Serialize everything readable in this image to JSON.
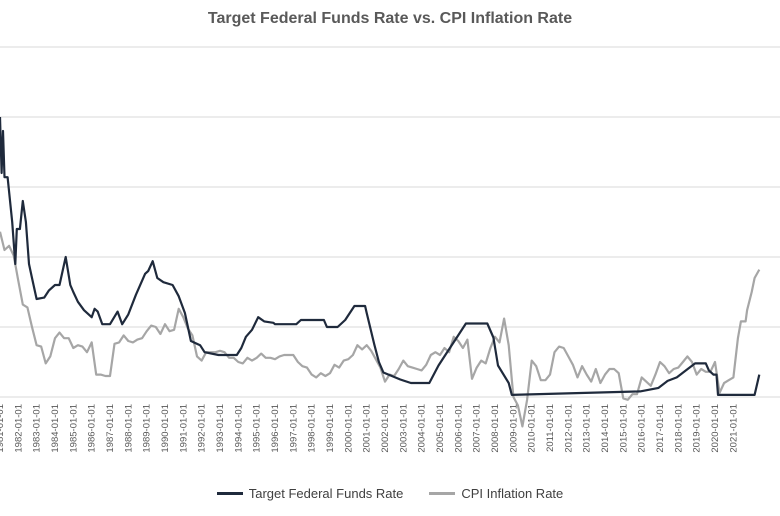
{
  "chart_data": {
    "type": "line",
    "title": "Target Federal Funds Rate vs. CPI Inflation Rate",
    "xlabel": "",
    "ylabel": "",
    "x_range": [
      "1981-01-01",
      "2022-06-01"
    ],
    "ylim": [
      0,
      20
    ],
    "grid": "horizontal",
    "legend_position": "bottom",
    "x_tick_labels": [
      "1981-01-01",
      "1982-01-01",
      "1983-01-01",
      "1984-01-01",
      "1985-01-01",
      "1986-01-01",
      "1987-01-01",
      "1988-01-01",
      "1989-01-01",
      "1990-01-01",
      "1991-01-01",
      "1992-01-01",
      "1993-01-01",
      "1994-01-01",
      "1995-01-01",
      "1996-01-01",
      "1997-01-01",
      "1998-01-01",
      "1999-01-01",
      "2000-01-01",
      "2001-01-01",
      "2002-01-01",
      "2003-01-01",
      "2004-01-01",
      "2005-01-01",
      "2006-01-01",
      "2007-01-01",
      "2008-01-01",
      "2009-01-01",
      "2010-01-01",
      "2011-01-01",
      "2012-01-01",
      "2013-01-01",
      "2014-01-01",
      "2015-01-01",
      "2016-01-01",
      "2017-01-01",
      "2018-01-01",
      "2019-01-01",
      "2020-01-01",
      "2021-01-01"
    ],
    "series": [
      {
        "name": "Target Federal Funds Rate",
        "color": "#1f2a3c",
        "points": [
          [
            "1981-01-01",
            20
          ],
          [
            "1981-02-01",
            16
          ],
          [
            "1981-03-01",
            19
          ],
          [
            "1981-04-01",
            15.7
          ],
          [
            "1981-06-01",
            15.7
          ],
          [
            "1981-09-01",
            12.5
          ],
          [
            "1981-11-01",
            9.5
          ],
          [
            "1981-12-01",
            12
          ],
          [
            "1982-02-01",
            12
          ],
          [
            "1982-04-01",
            14
          ],
          [
            "1982-06-01",
            12.5
          ],
          [
            "1982-08-01",
            9.5
          ],
          [
            "1982-10-01",
            8.5
          ],
          [
            "1983-01-01",
            7
          ],
          [
            "1983-06-01",
            7.1
          ],
          [
            "1983-09-01",
            7.6
          ],
          [
            "1984-01-01",
            8
          ],
          [
            "1984-04-01",
            8
          ],
          [
            "1984-06-01",
            9
          ],
          [
            "1984-08-01",
            10
          ],
          [
            "1984-11-01",
            8
          ],
          [
            "1985-01-01",
            7.5
          ],
          [
            "1985-04-01",
            6.8
          ],
          [
            "1985-08-01",
            6.2
          ],
          [
            "1986-01-01",
            5.7
          ],
          [
            "1986-03-01",
            6.3
          ],
          [
            "1986-05-01",
            6.1
          ],
          [
            "1986-08-01",
            5.2
          ],
          [
            "1987-01-01",
            5.2
          ],
          [
            "1987-06-01",
            6.1
          ],
          [
            "1987-09-01",
            5.2
          ],
          [
            "1988-01-01",
            5.9
          ],
          [
            "1988-06-01",
            7.3
          ],
          [
            "1988-12-01",
            8.8
          ],
          [
            "1989-02-01",
            9
          ],
          [
            "1989-05-01",
            9.7
          ],
          [
            "1989-08-01",
            8.5
          ],
          [
            "1989-12-01",
            8.2
          ],
          [
            "1990-06-01",
            8
          ],
          [
            "1990-10-01",
            7.2
          ],
          [
            "1991-02-01",
            6
          ],
          [
            "1991-06-01",
            4
          ],
          [
            "1991-12-01",
            3.7
          ],
          [
            "1992-03-01",
            3.2
          ],
          [
            "1992-12-01",
            3
          ],
          [
            "1993-12-01",
            3
          ],
          [
            "1994-03-01",
            3.5
          ],
          [
            "1994-06-01",
            4.3
          ],
          [
            "1994-10-01",
            4.8
          ],
          [
            "1995-02-01",
            5.7
          ],
          [
            "1995-06-01",
            5.4
          ],
          [
            "1995-12-01",
            5.3
          ],
          [
            "1996-01-01",
            5.2
          ],
          [
            "1997-03-01",
            5.2
          ],
          [
            "1997-06-01",
            5.5
          ],
          [
            "1998-09-01",
            5.5
          ],
          [
            "1998-11-01",
            5
          ],
          [
            "1999-06-01",
            5
          ],
          [
            "1999-11-01",
            5.5
          ],
          [
            "2000-05-01",
            6.5
          ],
          [
            "2000-12-01",
            6.5
          ],
          [
            "2001-01-01",
            6
          ],
          [
            "2001-06-01",
            3.75
          ],
          [
            "2001-09-01",
            2.5
          ],
          [
            "2001-12-01",
            1.75
          ],
          [
            "2002-11-01",
            1.25
          ],
          [
            "2003-06-01",
            1
          ],
          [
            "2004-06-01",
            1
          ],
          [
            "2004-12-01",
            2.25
          ],
          [
            "2005-06-01",
            3.25
          ],
          [
            "2005-12-01",
            4.25
          ],
          [
            "2006-06-01",
            5.25
          ],
          [
            "2007-08-01",
            5.25
          ],
          [
            "2007-12-01",
            4.25
          ],
          [
            "2008-03-01",
            2.25
          ],
          [
            "2008-10-01",
            1
          ],
          [
            "2008-12-01",
            0.15
          ],
          [
            "2015-12-01",
            0.4
          ],
          [
            "2016-12-01",
            0.65
          ],
          [
            "2017-06-01",
            1.15
          ],
          [
            "2017-12-01",
            1.4
          ],
          [
            "2018-06-01",
            1.9
          ],
          [
            "2018-12-01",
            2.4
          ],
          [
            "2019-07-01",
            2.4
          ],
          [
            "2019-09-01",
            1.9
          ],
          [
            "2019-12-01",
            1.6
          ],
          [
            "2020-02-01",
            1.6
          ],
          [
            "2020-03-01",
            0.15
          ],
          [
            "2022-03-01",
            0.15
          ],
          [
            "2022-06-01",
            1.6
          ]
        ]
      },
      {
        "name": "CPI Inflation Rate",
        "color": "#a6a6a6",
        "points": [
          [
            "1981-01-01",
            11.8
          ],
          [
            "1981-04-01",
            10.5
          ],
          [
            "1981-07-01",
            10.8
          ],
          [
            "1981-10-01",
            10.1
          ],
          [
            "1982-01-01",
            8.3
          ],
          [
            "1982-04-01",
            6.6
          ],
          [
            "1982-07-01",
            6.4
          ],
          [
            "1982-10-01",
            5
          ],
          [
            "1983-01-01",
            3.7
          ],
          [
            "1983-04-01",
            3.6
          ],
          [
            "1983-07-01",
            2.4
          ],
          [
            "1983-10-01",
            2.9
          ],
          [
            "1984-01-01",
            4.2
          ],
          [
            "1984-04-01",
            4.6
          ],
          [
            "1984-07-01",
            4.2
          ],
          [
            "1984-10-01",
            4.2
          ],
          [
            "1985-01-01",
            3.5
          ],
          [
            "1985-04-01",
            3.7
          ],
          [
            "1985-07-01",
            3.6
          ],
          [
            "1985-10-01",
            3.2
          ],
          [
            "1986-01-01",
            3.9
          ],
          [
            "1986-04-01",
            1.6
          ],
          [
            "1986-07-01",
            1.6
          ],
          [
            "1986-10-01",
            1.5
          ],
          [
            "1987-01-01",
            1.5
          ],
          [
            "1987-04-01",
            3.8
          ],
          [
            "1987-07-01",
            3.9
          ],
          [
            "1987-10-01",
            4.4
          ],
          [
            "1988-01-01",
            4
          ],
          [
            "1988-04-01",
            3.9
          ],
          [
            "1988-07-01",
            4.1
          ],
          [
            "1988-10-01",
            4.2
          ],
          [
            "1989-01-01",
            4.7
          ],
          [
            "1989-04-01",
            5.1
          ],
          [
            "1989-07-01",
            5
          ],
          [
            "1989-10-01",
            4.5
          ],
          [
            "1990-01-01",
            5.2
          ],
          [
            "1990-04-01",
            4.7
          ],
          [
            "1990-07-01",
            4.8
          ],
          [
            "1990-10-01",
            6.3
          ],
          [
            "1991-01-01",
            5.7
          ],
          [
            "1991-04-01",
            4.9
          ],
          [
            "1991-07-01",
            4.4
          ],
          [
            "1991-10-01",
            2.9
          ],
          [
            "1992-01-01",
            2.6
          ],
          [
            "1992-04-01",
            3.2
          ],
          [
            "1992-07-01",
            3.2
          ],
          [
            "1992-10-01",
            3.2
          ],
          [
            "1993-01-01",
            3.3
          ],
          [
            "1993-04-01",
            3.2
          ],
          [
            "1993-07-01",
            2.8
          ],
          [
            "1993-10-01",
            2.8
          ],
          [
            "1994-01-01",
            2.5
          ],
          [
            "1994-04-01",
            2.4
          ],
          [
            "1994-07-01",
            2.8
          ],
          [
            "1994-10-01",
            2.6
          ],
          [
            "1995-01-01",
            2.8
          ],
          [
            "1995-04-01",
            3.1
          ],
          [
            "1995-07-01",
            2.8
          ],
          [
            "1995-10-01",
            2.8
          ],
          [
            "1996-01-01",
            2.7
          ],
          [
            "1996-04-01",
            2.9
          ],
          [
            "1996-07-01",
            3
          ],
          [
            "1996-10-01",
            3
          ],
          [
            "1997-01-01",
            3
          ],
          [
            "1997-04-01",
            2.5
          ],
          [
            "1997-07-01",
            2.2
          ],
          [
            "1997-10-01",
            2.1
          ],
          [
            "1998-01-01",
            1.6
          ],
          [
            "1998-04-01",
            1.4
          ],
          [
            "1998-07-01",
            1.7
          ],
          [
            "1998-10-01",
            1.5
          ],
          [
            "1999-01-01",
            1.7
          ],
          [
            "1999-04-01",
            2.3
          ],
          [
            "1999-07-01",
            2.1
          ],
          [
            "1999-10-01",
            2.6
          ],
          [
            "2000-01-01",
            2.7
          ],
          [
            "2000-04-01",
            3
          ],
          [
            "2000-07-01",
            3.7
          ],
          [
            "2000-10-01",
            3.4
          ],
          [
            "2001-01-01",
            3.7
          ],
          [
            "2001-04-01",
            3.3
          ],
          [
            "2001-07-01",
            2.7
          ],
          [
            "2001-10-01",
            2.1
          ],
          [
            "2002-01-01",
            1.1
          ],
          [
            "2002-04-01",
            1.6
          ],
          [
            "2002-07-01",
            1.5
          ],
          [
            "2002-10-01",
            2
          ],
          [
            "2003-01-01",
            2.6
          ],
          [
            "2003-04-01",
            2.2
          ],
          [
            "2003-07-01",
            2.1
          ],
          [
            "2003-10-01",
            2
          ],
          [
            "2004-01-01",
            1.9
          ],
          [
            "2004-04-01",
            2.3
          ],
          [
            "2004-07-01",
            3
          ],
          [
            "2004-10-01",
            3.2
          ],
          [
            "2005-01-01",
            3
          ],
          [
            "2005-04-01",
            3.5
          ],
          [
            "2005-07-01",
            3.2
          ],
          [
            "2005-10-01",
            4.3
          ],
          [
            "2006-01-01",
            4
          ],
          [
            "2006-04-01",
            3.5
          ],
          [
            "2006-07-01",
            4.1
          ],
          [
            "2006-10-01",
            1.3
          ],
          [
            "2007-01-01",
            2.1
          ],
          [
            "2007-04-01",
            2.6
          ],
          [
            "2007-07-01",
            2.4
          ],
          [
            "2007-10-01",
            3.5
          ],
          [
            "2008-01-01",
            4.3
          ],
          [
            "2008-04-01",
            3.9
          ],
          [
            "2008-07-01",
            5.6
          ],
          [
            "2008-10-01",
            3.7
          ],
          [
            "2009-01-01",
            0
          ],
          [
            "2009-04-01",
            -0.6
          ],
          [
            "2009-07-01",
            -2.1
          ],
          [
            "2009-10-01",
            -0.2
          ],
          [
            "2010-01-01",
            2.6
          ],
          [
            "2010-04-01",
            2.2
          ],
          [
            "2010-07-01",
            1.2
          ],
          [
            "2010-10-01",
            1.2
          ],
          [
            "2011-01-01",
            1.6
          ],
          [
            "2011-04-01",
            3.2
          ],
          [
            "2011-07-01",
            3.6
          ],
          [
            "2011-10-01",
            3.5
          ],
          [
            "2012-01-01",
            2.9
          ],
          [
            "2012-04-01",
            2.3
          ],
          [
            "2012-07-01",
            1.4
          ],
          [
            "2012-10-01",
            2.2
          ],
          [
            "2013-01-01",
            1.6
          ],
          [
            "2013-04-01",
            1.1
          ],
          [
            "2013-07-01",
            2
          ],
          [
            "2013-10-01",
            1
          ],
          [
            "2014-01-01",
            1.6
          ],
          [
            "2014-04-01",
            2
          ],
          [
            "2014-07-01",
            2
          ],
          [
            "2014-10-01",
            1.7
          ],
          [
            "2015-01-01",
            -0.1
          ],
          [
            "2015-04-01",
            -0.2
          ],
          [
            "2015-07-01",
            0.2
          ],
          [
            "2015-10-01",
            0.2
          ],
          [
            "2016-01-01",
            1.4
          ],
          [
            "2016-04-01",
            1.1
          ],
          [
            "2016-07-01",
            0.8
          ],
          [
            "2016-10-01",
            1.6
          ],
          [
            "2017-01-01",
            2.5
          ],
          [
            "2017-04-01",
            2.2
          ],
          [
            "2017-07-01",
            1.7
          ],
          [
            "2017-10-01",
            2
          ],
          [
            "2018-01-01",
            2.1
          ],
          [
            "2018-04-01",
            2.5
          ],
          [
            "2018-07-01",
            2.9
          ],
          [
            "2018-10-01",
            2.5
          ],
          [
            "2019-01-01",
            1.6
          ],
          [
            "2019-04-01",
            2
          ],
          [
            "2019-07-01",
            1.8
          ],
          [
            "2019-10-01",
            1.8
          ],
          [
            "2020-01-01",
            2.5
          ],
          [
            "2020-04-01",
            0.3
          ],
          [
            "2020-07-01",
            1
          ],
          [
            "2020-10-01",
            1.2
          ],
          [
            "2021-01-01",
            1.4
          ],
          [
            "2021-04-01",
            4.2
          ],
          [
            "2021-06-01",
            5.4
          ],
          [
            "2021-09-01",
            5.4
          ],
          [
            "2021-10-01",
            6.2
          ],
          [
            "2022-01-01",
            7.5
          ],
          [
            "2022-03-01",
            8.5
          ],
          [
            "2022-06-01",
            9.1
          ]
        ]
      }
    ]
  }
}
